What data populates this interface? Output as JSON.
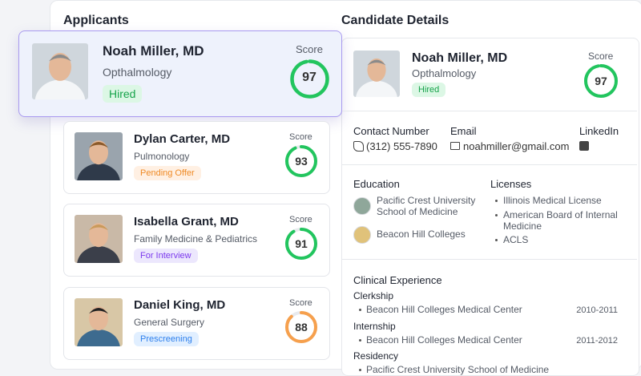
{
  "header": {
    "applicants_title": "Applicants",
    "details_title": "Candidate Details"
  },
  "applicants": [
    {
      "name": "Noah Miller, MD",
      "specialty": "Opthalmology",
      "status": "Hired",
      "score_label": "Score",
      "score": 97,
      "ring_color": "#22c55e"
    },
    {
      "name": "Dylan Carter, MD",
      "specialty": "Pulmonology",
      "status": "Pending Offer",
      "score_label": "Score",
      "score": 93,
      "ring_color": "#22c55e"
    },
    {
      "name": "Isabella Grant, MD",
      "specialty": "Family Medicine & Pediatrics",
      "status": "For Interview",
      "score_label": "Score",
      "score": 91,
      "ring_color": "#22c55e"
    },
    {
      "name": "Daniel King, MD",
      "specialty": "General Surgery",
      "status": "Prescreening",
      "score_label": "Score",
      "score": 88,
      "ring_color": "#f6a04d"
    }
  ],
  "details": {
    "name": "Noah Miller, MD",
    "specialty": "Opthalmology",
    "status": "Hired",
    "score_label": "Score",
    "score": 97,
    "ring_color": "#22c55e",
    "contact": {
      "label": "Contact Number",
      "value": "(312) 555-7890"
    },
    "email": {
      "label": "Email",
      "value": "noahmiller@gmail.com"
    },
    "linkedin": {
      "label": "LinkedIn"
    },
    "education": {
      "title": "Education",
      "items": [
        "Pacific Crest University School of Medicine",
        "Beacon Hill Colleges"
      ]
    },
    "licenses": {
      "title": "Licenses",
      "items": [
        "Illinois Medical License",
        "American Board of Internal Medicine",
        "ACLS"
      ]
    },
    "clinical": {
      "title": "Clinical Experience",
      "groups": [
        {
          "title": "Clerkship",
          "item": "Beacon Hill Colleges Medical Center",
          "years": "2010-2011"
        },
        {
          "title": "Internship",
          "item": "Beacon Hill Colleges Medical Center",
          "years": "2011-2012"
        },
        {
          "title": "Residency",
          "item": "Pacific Crest University School of Medicine",
          "years": ""
        }
      ]
    }
  }
}
